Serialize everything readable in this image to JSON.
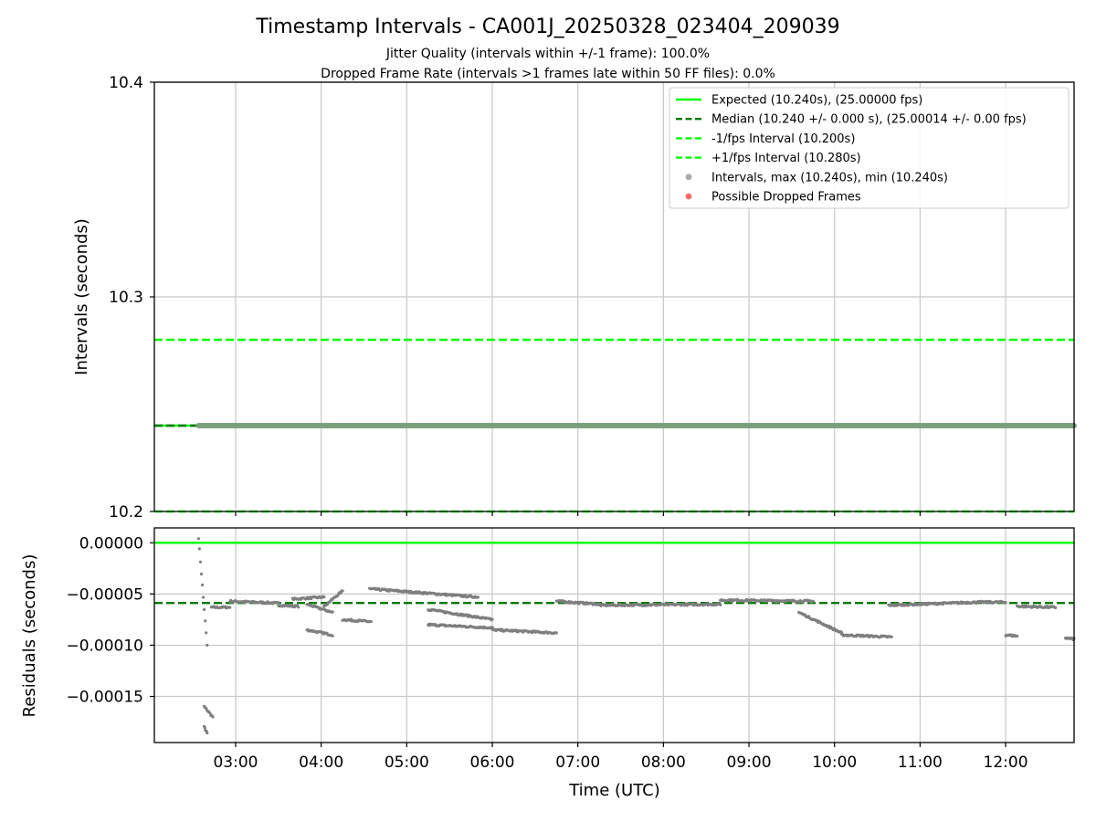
{
  "figure": {
    "title": "Timestamp Intervals - CA001J_20250328_023404_209039",
    "subtitle_1": "Jitter Quality (intervals within +/-1 frame): 100.0%",
    "subtitle_2": "Dropped Frame Rate (intervals >1 frames late within 50 FF files): 0.0%"
  },
  "colors": {
    "expected": "#00ff00",
    "median": "#007a00",
    "bound": "#00ff00",
    "points": "#7f7f7f",
    "dropped": "#ff4d4d",
    "grid": "#c8c8c8"
  },
  "chart_data": [
    {
      "type": "scatter",
      "panel": "intervals",
      "ylabel": "Intervals (seconds)",
      "xlabel": "",
      "ylim": [
        10.2,
        10.4
      ],
      "xlim": [
        "02:03",
        "12:48"
      ],
      "y_ticks": [
        "10.2",
        "10.3",
        "10.4"
      ],
      "x_ticks": [
        "03:00",
        "04:00",
        "05:00",
        "06:00",
        "07:00",
        "08:00",
        "09:00",
        "10:00",
        "11:00",
        "12:00"
      ],
      "grid": true,
      "legend_position": "top-right",
      "reference_lines": [
        {
          "name": "Expected (10.240s), (25.00000 fps)",
          "y": 10.24,
          "style": "solid",
          "color": "#00ff00"
        },
        {
          "name": "Median (10.240 +/- 0.000 s), (25.00014 +/- 0.00 fps)",
          "y": 10.24,
          "style": "dashed",
          "color": "#007a00"
        },
        {
          "name": "-1/fps Interval (10.200s)",
          "y": 10.2,
          "style": "dashed",
          "color": "#00ff00"
        },
        {
          "name": "+1/fps Interval (10.280s)",
          "y": 10.28,
          "style": "dashed",
          "color": "#00ff00"
        }
      ],
      "series": [
        {
          "name": "Intervals, max (10.240s), min (10.240s)",
          "x_range": [
            "02:34",
            "12:48"
          ],
          "y": 10.24
        },
        {
          "name": "Possible Dropped Frames",
          "points": []
        }
      ]
    },
    {
      "type": "scatter",
      "panel": "residuals",
      "ylabel": "Residuals (seconds)",
      "xlabel": "Time (UTC)",
      "ylim": [
        -0.000195,
        1.45e-05
      ],
      "xlim": [
        "02:03",
        "12:48"
      ],
      "y_ticks": [
        "0.00000",
        "−0.00005",
        "−0.00010",
        "−0.00015"
      ],
      "x_ticks": [
        "03:00",
        "04:00",
        "05:00",
        "06:00",
        "07:00",
        "08:00",
        "09:00",
        "10:00",
        "11:00",
        "12:00"
      ],
      "grid": true,
      "reference_lines": [
        {
          "y": 0.0,
          "style": "solid",
          "color": "#00ff00"
        },
        {
          "y": -5.88e-05,
          "style": "dashed",
          "color": "#007a00"
        }
      ],
      "series": [
        {
          "name": "residuals",
          "segments": [
            {
              "x": [
                "02:34",
                "02:40"
              ],
              "y": [
                5e-06,
                -0.0001
              ]
            },
            {
              "x": [
                "02:38",
                "02:44"
              ],
              "y": [
                -0.00016,
                -0.00017
              ]
            },
            {
              "x": [
                "02:38",
                "02:40"
              ],
              "y": [
                -0.00018,
                -0.000186
              ]
            },
            {
              "x": [
                "02:43",
                "02:56"
              ],
              "y": [
                -6.3e-05,
                -6.3e-05
              ]
            },
            {
              "x": [
                "02:56",
                "03:30"
              ],
              "y": [
                -5.7e-05,
                -5.9e-05
              ]
            },
            {
              "x": [
                "03:30",
                "03:44"
              ],
              "y": [
                -6.1e-05,
                -6.2e-05
              ]
            },
            {
              "x": [
                "03:40",
                "04:02"
              ],
              "y": [
                -5.5e-05,
                -5.3e-05
              ]
            },
            {
              "x": [
                "03:50",
                "04:08"
              ],
              "y": [
                -6e-05,
                -6.8e-05
              ]
            },
            {
              "x": [
                "03:50",
                "04:08"
              ],
              "y": [
                -8.5e-05,
                -9e-05
              ]
            },
            {
              "x": [
                "04:02",
                "04:15"
              ],
              "y": [
                -6.2e-05,
                -4.7e-05
              ]
            },
            {
              "x": [
                "04:15",
                "04:35"
              ],
              "y": [
                -7.5e-05,
                -7.7e-05
              ]
            },
            {
              "x": [
                "04:34",
                "05:50"
              ],
              "y": [
                -4.5e-05,
                -5.3e-05
              ]
            },
            {
              "x": [
                "05:15",
                "06:00"
              ],
              "y": [
                -6.5e-05,
                -7.5e-05
              ]
            },
            {
              "x": [
                "05:15",
                "06:00"
              ],
              "y": [
                -8e-05,
                -8.3e-05
              ]
            },
            {
              "x": [
                "06:00",
                "06:45"
              ],
              "y": [
                -8.5e-05,
                -8.8e-05
              ]
            },
            {
              "x": [
                "06:45",
                "07:15"
              ],
              "y": [
                -5.7e-05,
                -6e-05
              ]
            },
            {
              "x": [
                "07:15",
                "08:40"
              ],
              "y": [
                -6.1e-05,
                -6e-05
              ]
            },
            {
              "x": [
                "08:40",
                "09:45"
              ],
              "y": [
                -5.6e-05,
                -5.7e-05
              ]
            },
            {
              "x": [
                "09:35",
                "10:05"
              ],
              "y": [
                -6.8e-05,
                -8.8e-05
              ]
            },
            {
              "x": [
                "10:05",
                "10:40"
              ],
              "y": [
                -9e-05,
                -9.2e-05
              ]
            },
            {
              "x": [
                "10:38",
                "11:40"
              ],
              "y": [
                -6.1e-05,
                -5.8e-05
              ]
            },
            {
              "x": [
                "11:40",
                "12:00"
              ],
              "y": [
                -5.8e-05,
                -5.8e-05
              ]
            },
            {
              "x": [
                "12:00",
                "12:08"
              ],
              "y": [
                -9e-05,
                -9.1e-05
              ]
            },
            {
              "x": [
                "12:08",
                "12:35"
              ],
              "y": [
                -6.2e-05,
                -6.3e-05
              ]
            },
            {
              "x": [
                "12:42",
                "12:48"
              ],
              "y": [
                -9.3e-05,
                -9.4e-05
              ]
            }
          ]
        }
      ]
    }
  ],
  "legend": [
    {
      "label": "Expected (10.240s), (25.00000 fps)",
      "marker": "solid-line",
      "color": "#00ff00"
    },
    {
      "label": "Median (10.240 +/- 0.000 s), (25.00014 +/- 0.00 fps)",
      "marker": "dashed-line",
      "color": "#007a00"
    },
    {
      "label": "-1/fps Interval (10.200s)",
      "marker": "dashed-line",
      "color": "#00ff00"
    },
    {
      "label": "+1/fps Interval (10.280s)",
      "marker": "dashed-line",
      "color": "#00ff00"
    },
    {
      "label": "Intervals, max (10.240s), min (10.240s)",
      "marker": "dot",
      "color": "#aaaaaa"
    },
    {
      "label": "Possible Dropped Frames",
      "marker": "dot",
      "color": "#ff6b6b"
    }
  ]
}
